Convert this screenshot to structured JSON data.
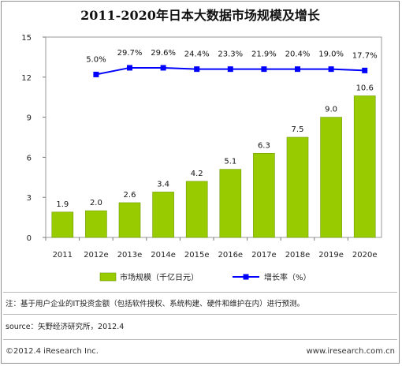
{
  "chart_data": {
    "type": "bar",
    "title": "2011-2020年日本大数据市场规模及增长",
    "categories": [
      "2011",
      "2012e",
      "2013e",
      "2014e",
      "2015e",
      "2016e",
      "2017e",
      "2018e",
      "2019e",
      "2020e"
    ],
    "ylim": [
      0,
      15
    ],
    "yticks": [
      0,
      3,
      6,
      9,
      12,
      15
    ],
    "grid": false,
    "legend_position": "bottom",
    "series": [
      {
        "name": "市场规模（千亿日元）",
        "type": "bar",
        "color": "#99cc00",
        "values": [
          1.9,
          2.0,
          2.6,
          3.4,
          4.2,
          5.1,
          6.3,
          7.5,
          9.0,
          10.6
        ],
        "labels": [
          "1.9",
          "2.0",
          "2.6",
          "3.4",
          "4.2",
          "5.1",
          "6.3",
          "7.5",
          "9.0",
          "10.6"
        ]
      },
      {
        "name": "增长率（%）",
        "type": "line",
        "color": "#0000ff",
        "values": [
          null,
          12.2,
          12.7,
          12.7,
          12.6,
          12.6,
          12.6,
          12.6,
          12.6,
          12.5
        ],
        "labels": [
          "",
          "5.0%",
          "29.7%",
          "29.6%",
          "24.4%",
          "23.3%",
          "21.9%",
          "20.4%",
          "19.0%",
          "17.7%"
        ]
      }
    ]
  },
  "note": "注：基于用户企业的IT投资金额（包括软件授权、系统构建、硬件和维护在内）进行预测。",
  "source": "source：矢野经济研究所，2012.4",
  "footer_left": "©2012.4 iResearch Inc.",
  "footer_right": "www.iresearch.com.cn"
}
